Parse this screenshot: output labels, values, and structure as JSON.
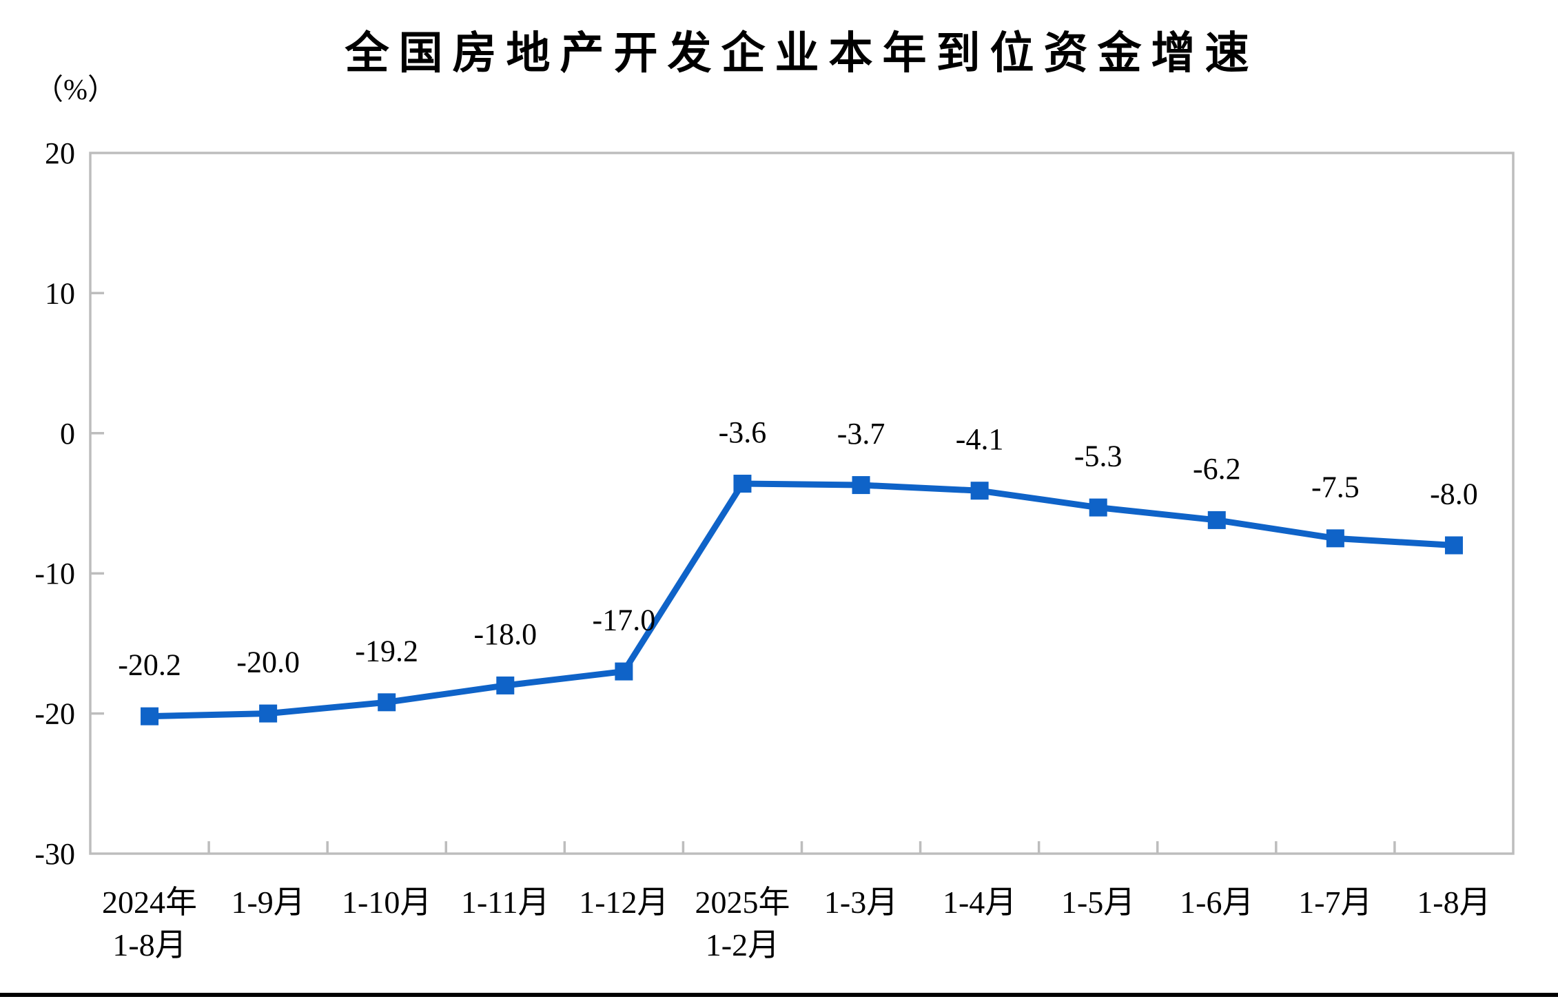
{
  "chart_data": {
    "type": "line",
    "title": "全国房地产开发企业本年到位资金增速",
    "y_unit_label": "（%）",
    "categories": [
      "2024年\n1-8月",
      "1-9月",
      "1-10月",
      "1-11月",
      "1-12月",
      "2025年\n1-2月",
      "1-3月",
      "1-4月",
      "1-5月",
      "1-6月",
      "1-7月",
      "1-8月"
    ],
    "values": [
      -20.2,
      -20.0,
      -19.2,
      -18.0,
      -17.0,
      -3.6,
      -3.7,
      -4.1,
      -5.3,
      -6.2,
      -7.5,
      -8.0
    ],
    "data_labels": [
      "-20.2",
      "-20.0",
      "-19.2",
      "-18.0",
      "-17.0",
      "-3.6",
      "-3.7",
      "-4.1",
      "-5.3",
      "-6.2",
      "-7.5",
      "-8.0"
    ],
    "ylim": [
      -30,
      20
    ],
    "yticks": [
      20,
      10,
      0,
      -10,
      -20,
      -30
    ],
    "grid": false,
    "legend": "none",
    "marker": "square",
    "line_color": "#0F63C8",
    "axis_color": "#BDBDBD",
    "text_color": "#000000",
    "xlabel": "",
    "ylabel": "（%）"
  }
}
